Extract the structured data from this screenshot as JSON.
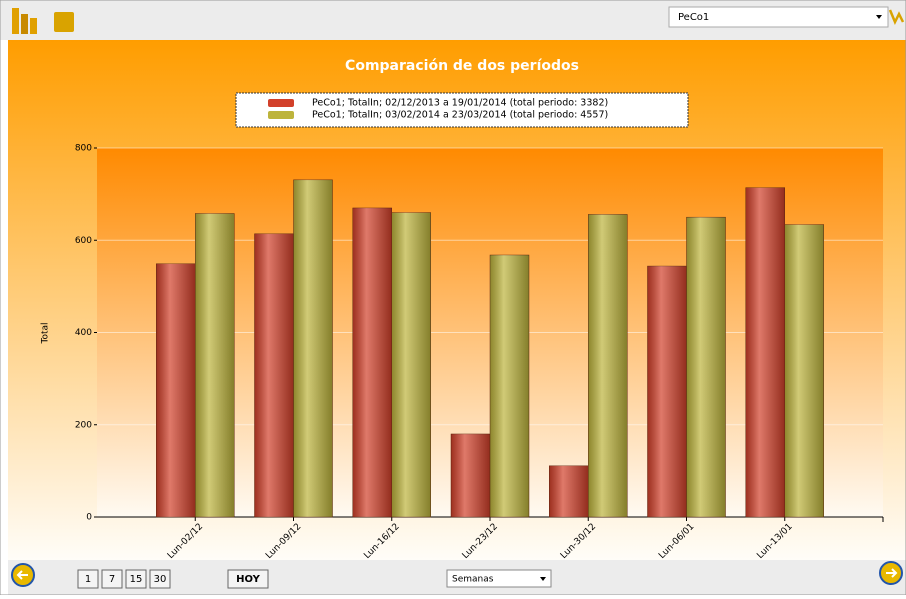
{
  "chart_data": {
    "type": "bar",
    "title": "Comparación de dos períodos",
    "y_label": "Total",
    "categories": [
      "Lun-02/12",
      "Lun-09/12",
      "Lun-16/12",
      "Lun-23/12",
      "Lun-30/12",
      "Lun-06/01",
      "Lun-13/01"
    ],
    "series": [
      {
        "name": "PeCo1; TotalIn; 02/12/2013 a 19/01/2014 (total periodo: 3382)",
        "color": "#d2402a",
        "values": [
          549,
          614,
          670,
          180,
          111,
          544,
          714
        ]
      },
      {
        "name": "PeCo1; TotalIn; 03/02/2014 a 23/03/2014 (total periodo: 4557)",
        "color": "#bdb43c",
        "values": [
          658,
          731,
          660,
          568,
          656,
          650,
          634
        ]
      }
    ],
    "ylim": [
      0,
      800
    ],
    "yticks": [
      0,
      200,
      400,
      600,
      800
    ],
    "grid": true,
    "legend": "top"
  },
  "ui": {
    "dropdown": "PeCo1",
    "period_buttons": [
      "1",
      "7",
      "15",
      "30"
    ],
    "today": "HOY",
    "select": "Semanas"
  }
}
